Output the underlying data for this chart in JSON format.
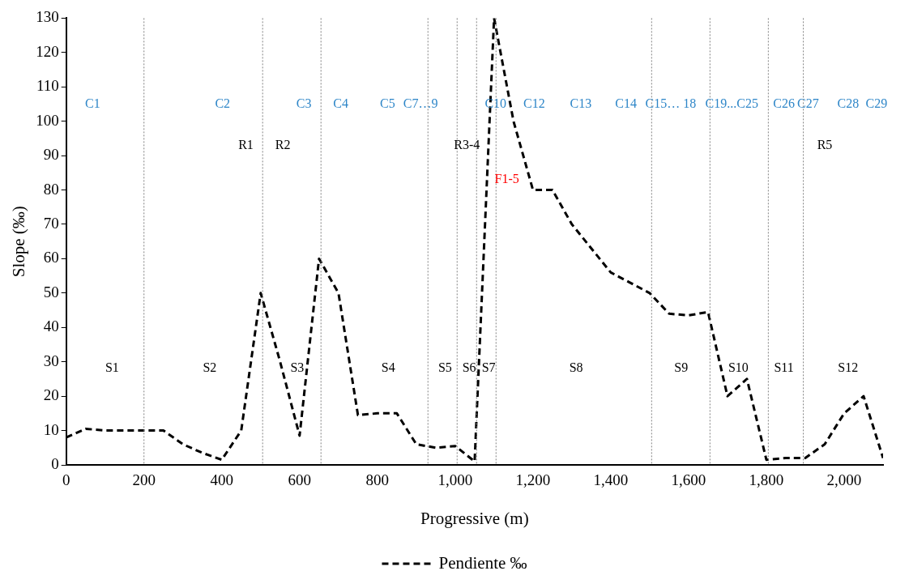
{
  "chart_data": {
    "type": "line",
    "xlabel": "Progressive (m)",
    "ylabel": "Slope (‰)",
    "legend": "bottom",
    "line_style": "dashed",
    "marker": "none",
    "grid": false,
    "xlim": [
      0,
      2100
    ],
    "ylim": [
      0,
      130
    ],
    "xticks": [
      0,
      200,
      400,
      600,
      800,
      {
        "value": 1000,
        "label": "1,000"
      },
      {
        "value": 1200,
        "label": "1,200"
      },
      {
        "value": 1400,
        "label": "1,400"
      },
      {
        "value": 1600,
        "label": "1,600"
      },
      {
        "value": 1800,
        "label": "1,800"
      },
      {
        "value": 2000,
        "label": "2,000"
      }
    ],
    "yticks": [
      0,
      10,
      20,
      30,
      40,
      50,
      60,
      70,
      80,
      90,
      100,
      110,
      120,
      130
    ],
    "x": [
      0,
      50,
      100,
      150,
      200,
      250,
      300,
      350,
      400,
      450,
      500,
      550,
      600,
      650,
      700,
      750,
      800,
      850,
      900,
      950,
      1000,
      1050,
      1100,
      1150,
      1200,
      1250,
      1300,
      1350,
      1400,
      1450,
      1500,
      1550,
      1600,
      1650,
      1700,
      1750,
      1800,
      1850,
      1900,
      1950,
      2000,
      2050,
      2100
    ],
    "series": [
      {
        "name": "Pendiente ‰",
        "color": "#000000",
        "values": [
          8,
          10.5,
          10,
          10,
          10,
          10,
          6,
          3.5,
          1.5,
          10,
          50,
          30,
          8.5,
          60,
          50,
          14.5,
          15,
          15,
          6,
          5,
          5.5,
          1,
          130,
          100,
          80,
          80,
          70,
          63,
          56,
          53,
          50,
          44,
          43.5,
          44.5,
          20,
          25,
          1.5,
          2,
          2,
          6,
          15,
          20,
          2
        ]
      }
    ],
    "ref_lines": [
      {
        "axis": "x",
        "value": 200,
        "color": "#808080",
        "line_style": "dotted"
      },
      {
        "axis": "x",
        "value": 505,
        "color": "#808080",
        "line_style": "dotted"
      },
      {
        "axis": "x",
        "value": 655,
        "color": "#808080",
        "line_style": "dotted"
      },
      {
        "axis": "x",
        "value": 930,
        "color": "#808080",
        "line_style": "dotted"
      },
      {
        "axis": "x",
        "value": 1005,
        "color": "#808080",
        "line_style": "dotted"
      },
      {
        "axis": "x",
        "value": 1055,
        "color": "#808080",
        "line_style": "dotted"
      },
      {
        "axis": "x",
        "value": 1105,
        "color": "#808080",
        "line_style": "dotted"
      },
      {
        "axis": "x",
        "value": 1505,
        "color": "#808080",
        "line_style": "dotted"
      },
      {
        "axis": "x",
        "value": 1655,
        "color": "#808080",
        "line_style": "dotted"
      },
      {
        "axis": "x",
        "value": 1805,
        "color": "#808080",
        "line_style": "dotted"
      },
      {
        "axis": "x",
        "value": 1895,
        "color": "#808080",
        "line_style": "dotted"
      }
    ],
    "annotations": [
      "C1",
      "C2",
      "C3",
      "C4",
      "C5",
      "C7…9",
      "C10",
      "C12",
      "C13",
      "C14",
      "C15… 18",
      "C19...C25",
      "C26",
      "C27",
      "C28",
      "C29",
      "R1",
      "R2",
      "R3-4",
      "R5",
      "F1-5",
      "S1",
      "S2",
      "S3",
      "S4",
      "S5",
      "S6",
      "S7",
      "S8",
      "S9",
      "S10",
      "S11",
      "S12"
    ]
  }
}
